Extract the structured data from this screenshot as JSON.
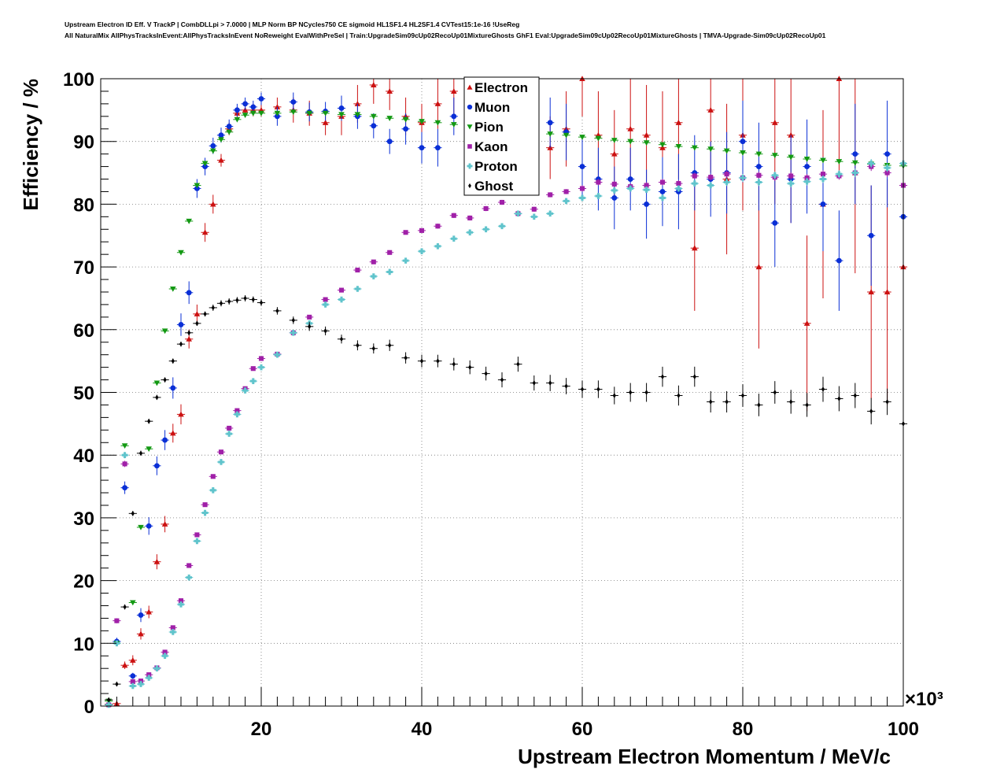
{
  "title_lines": [
    "Upstream Electron ID Eff. V TrackP | CombDLLpi > 7.0000 | MLP Norm BP NCycles750 CE sigmoid HL1SF1.4 HL2SF1.4 CVTest15:1e-16 !UseReg",
    "All NaturalMix AllPhysTracksInEvent:AllPhysTracksInEvent NoReweight EvalWithPreSel | Train:UpgradeSim09cUp02RecoUp01MixtureGhosts GhF1 Eval:UpgradeSim09cUp02RecoUp01MixtureGhosts | TMVA-Upgrade-Sim09cUp02RecoUp01"
  ],
  "colors": {
    "Electron": "#cc1111",
    "Muon": "#0a2fd6",
    "Pion": "#139913",
    "Kaon": "#a020a8",
    "Proton": "#60c4cc",
    "Ghost": "#000000"
  },
  "chart_data": {
    "type": "scatter",
    "xlabel": "Upstream Electron Momentum / MeV/c",
    "ylabel": "Efficiency / %",
    "x_multiplier": "×10³",
    "xlim": [
      0,
      100
    ],
    "ylim": [
      0,
      100
    ],
    "x_ticks": [
      20,
      40,
      60,
      80,
      100
    ],
    "y_ticks": [
      0,
      10,
      20,
      30,
      40,
      50,
      60,
      70,
      80,
      90,
      100
    ],
    "grid": true,
    "legend_position": "top-center",
    "series": [
      {
        "name": "Electron",
        "marker": "triangle-up",
        "x": [
          1,
          2,
          3,
          4,
          5,
          6,
          7,
          8,
          9,
          10,
          11,
          12,
          13,
          14,
          15,
          16,
          17,
          18,
          19,
          20,
          22,
          24,
          26,
          28,
          30,
          32,
          34,
          36,
          38,
          40,
          42,
          44,
          46,
          48,
          50,
          52,
          54,
          56,
          58,
          60,
          62,
          64,
          66,
          68,
          70,
          72,
          74,
          76,
          78,
          80,
          82,
          84,
          86,
          88,
          90,
          92,
          94,
          96,
          98,
          100
        ],
        "y": [
          0.3,
          0.4,
          6.5,
          7.3,
          11.5,
          15,
          23,
          29,
          43.5,
          46.5,
          58.5,
          62.5,
          75.5,
          80,
          87,
          92,
          94.5,
          95,
          95,
          95,
          95.5,
          95,
          94.5,
          93,
          94,
          96,
          99,
          98,
          94,
          93,
          96,
          98,
          95,
          96,
          92,
          88,
          90,
          89,
          92,
          100,
          91,
          88,
          92,
          91,
          89,
          93,
          73,
          95,
          84,
          91,
          70,
          93,
          91,
          61,
          80,
          100,
          85,
          66,
          66,
          70
        ],
        "err": [
          0.3,
          0.3,
          0.6,
          0.8,
          0.9,
          1,
          1.2,
          1.3,
          1.5,
          1.6,
          1.5,
          1.5,
          1.5,
          1.5,
          1,
          1,
          1,
          1,
          1,
          1,
          1.5,
          2,
          2,
          2,
          3,
          3,
          3,
          3,
          3,
          3,
          4,
          4,
          4,
          4,
          5,
          5,
          5,
          5,
          6,
          6,
          7,
          7,
          8,
          8,
          9,
          9,
          10,
          10,
          12,
          12,
          13,
          13,
          14,
          14,
          15,
          15,
          16,
          17,
          18,
          18
        ]
      },
      {
        "name": "Muon",
        "marker": "circle",
        "x": [
          1,
          2,
          3,
          4,
          5,
          6,
          7,
          8,
          9,
          10,
          11,
          12,
          13,
          14,
          15,
          16,
          17,
          18,
          19,
          20,
          22,
          24,
          26,
          28,
          30,
          32,
          34,
          36,
          38,
          40,
          42,
          44,
          46,
          48,
          50,
          52,
          54,
          56,
          58,
          60,
          62,
          64,
          66,
          68,
          70,
          72,
          74,
          76,
          78,
          80,
          82,
          84,
          86,
          88,
          90,
          92,
          94,
          96,
          98,
          100
        ],
        "y": [
          0.2,
          10.3,
          34.8,
          4.8,
          14.5,
          28.7,
          38.3,
          42.4,
          50.7,
          60.8,
          65.9,
          82.5,
          86,
          89.3,
          91,
          92.4,
          95,
          96,
          95.5,
          96.8,
          94,
          96.3,
          94.7,
          94.8,
          95.3,
          94,
          92.5,
          90,
          92,
          89,
          89,
          94,
          90,
          92,
          88,
          90,
          89,
          93,
          91.5,
          86,
          84,
          81,
          84,
          80,
          82,
          82,
          85,
          84,
          85,
          90,
          86,
          77,
          84,
          86,
          80,
          71,
          88,
          75,
          88,
          78
        ],
        "err": [
          0.2,
          0.6,
          1,
          0.5,
          1.1,
          1.4,
          1.5,
          1.6,
          1.7,
          1.8,
          1.8,
          1.5,
          1.4,
          1.3,
          1.2,
          1.1,
          1,
          1,
          1,
          1,
          1.5,
          1.5,
          1.5,
          1.5,
          2,
          2,
          2,
          2,
          2.5,
          2.5,
          3,
          3,
          3,
          3.5,
          3.5,
          4,
          4,
          4,
          4.5,
          4.5,
          5,
          5,
          5,
          5.5,
          5.5,
          6,
          6,
          6,
          6.5,
          6.5,
          7,
          7,
          7,
          7.5,
          7.5,
          8,
          8,
          8,
          8.5,
          8.5
        ]
      },
      {
        "name": "Pion",
        "marker": "triangle-down",
        "x": [
          1,
          2,
          3,
          4,
          5,
          6,
          7,
          8,
          9,
          10,
          11,
          12,
          13,
          14,
          15,
          16,
          17,
          18,
          19,
          20,
          22,
          24,
          26,
          28,
          30,
          32,
          34,
          36,
          38,
          40,
          42,
          44,
          46,
          48,
          50,
          52,
          54,
          56,
          58,
          60,
          62,
          64,
          66,
          68,
          70,
          72,
          74,
          76,
          78,
          80,
          82,
          84,
          86,
          88,
          90,
          92,
          94,
          96,
          98,
          100
        ],
        "y": [
          0.8,
          10,
          41.5,
          16.5,
          28.5,
          41,
          51.5,
          59.8,
          66.5,
          72.3,
          77.3,
          83,
          86.5,
          88.5,
          90.3,
          91.5,
          93.5,
          94.2,
          94.5,
          94.5,
          94.5,
          94.7,
          94.5,
          94.5,
          94.3,
          94.3,
          94,
          93.7,
          93.5,
          93.2,
          93,
          92.7,
          92.5,
          92.2,
          92,
          91.8,
          91.5,
          91.2,
          91,
          90.7,
          90.5,
          90.2,
          90,
          89.8,
          89.5,
          89.2,
          89,
          88.8,
          88.5,
          88.2,
          88,
          87.8,
          87.5,
          87.2,
          87,
          86.8,
          86.6,
          86.4,
          86.2,
          86.1
        ],
        "err": [
          0.1,
          0.2,
          0.3,
          0.3,
          0.3,
          0.3,
          0.3,
          0.3,
          0.3,
          0.3,
          0.3,
          0.3,
          0.3,
          0.3,
          0.3,
          0.3,
          0.3,
          0.3,
          0.3,
          0.3,
          0.3,
          0.3,
          0.3,
          0.3,
          0.3,
          0.3,
          0.3,
          0.3,
          0.3,
          0.3,
          0.3,
          0.3,
          0.3,
          0.3,
          0.3,
          0.3,
          0.3,
          0.3,
          0.3,
          0.3,
          0.3,
          0.3,
          0.3,
          0.3,
          0.3,
          0.3,
          0.3,
          0.3,
          0.3,
          0.3,
          0.4,
          0.4,
          0.4,
          0.4,
          0.4,
          0.4,
          0.4,
          0.4,
          0.4,
          0.4
        ]
      },
      {
        "name": "Kaon",
        "marker": "square",
        "x": [
          1,
          2,
          3,
          4,
          5,
          6,
          7,
          8,
          9,
          10,
          11,
          12,
          13,
          14,
          15,
          16,
          17,
          18,
          19,
          20,
          22,
          24,
          26,
          28,
          30,
          32,
          34,
          36,
          38,
          40,
          42,
          44,
          46,
          48,
          50,
          52,
          54,
          56,
          58,
          60,
          62,
          64,
          66,
          68,
          70,
          72,
          74,
          76,
          78,
          80,
          82,
          84,
          86,
          88,
          90,
          92,
          94,
          96,
          98,
          100
        ],
        "y": [
          0.2,
          13.6,
          38.6,
          3.9,
          4,
          5,
          6.1,
          8.6,
          12.5,
          16.8,
          22.4,
          27.3,
          32.1,
          36.6,
          40.5,
          44.3,
          47.1,
          50.6,
          53.8,
          55.4,
          56.1,
          59.5,
          62,
          64.8,
          66.3,
          69.5,
          70.8,
          72.3,
          75.5,
          75.8,
          76.5,
          78.2,
          77.8,
          79.3,
          80.3,
          78.5,
          79.2,
          81.5,
          82,
          82.5,
          83.5,
          83.2,
          82.8,
          83,
          83.5,
          83.3,
          84.5,
          84.3,
          84.8,
          84.2,
          84.6,
          84.3,
          84.5,
          84.2,
          84.8,
          84.5,
          85,
          86,
          85,
          83
        ],
        "err": [
          0.1,
          0.4,
          0.5,
          0.2,
          0.2,
          0.2,
          0.2,
          0.2,
          0.2,
          0.3,
          0.3,
          0.3,
          0.3,
          0.3,
          0.3,
          0.3,
          0.3,
          0.3,
          0.3,
          0.3,
          0.3,
          0.3,
          0.3,
          0.3,
          0.3,
          0.3,
          0.3,
          0.3,
          0.3,
          0.3,
          0.4,
          0.4,
          0.4,
          0.4,
          0.4,
          0.4,
          0.4,
          0.4,
          0.4,
          0.5,
          0.5,
          0.5,
          0.5,
          0.5,
          0.5,
          0.5,
          0.5,
          0.5,
          0.6,
          0.6,
          0.6,
          0.6,
          0.6,
          0.6,
          0.6,
          0.6,
          0.7,
          0.7,
          0.7,
          0.7
        ]
      },
      {
        "name": "Proton",
        "marker": "cross",
        "x": [
          1,
          2,
          3,
          4,
          5,
          6,
          7,
          8,
          9,
          10,
          11,
          12,
          13,
          14,
          15,
          16,
          17,
          18,
          19,
          20,
          22,
          24,
          26,
          28,
          30,
          32,
          34,
          36,
          38,
          40,
          42,
          44,
          46,
          48,
          50,
          52,
          54,
          56,
          58,
          60,
          62,
          64,
          66,
          68,
          70,
          72,
          74,
          76,
          78,
          80,
          82,
          84,
          86,
          88,
          90,
          92,
          94,
          96,
          98,
          100
        ],
        "y": [
          0.2,
          10,
          40,
          3.2,
          3.5,
          4.5,
          6,
          8,
          11.8,
          16.2,
          20.5,
          26.3,
          30.8,
          34.4,
          38.9,
          43.4,
          46.5,
          50.3,
          51.8,
          54,
          56,
          59.5,
          61,
          64,
          64.8,
          66.5,
          68.5,
          69.2,
          71,
          72.5,
          73.3,
          74.5,
          75.5,
          76,
          76.5,
          78.5,
          78,
          78.5,
          80.5,
          81,
          81.3,
          82.2,
          82.5,
          82.3,
          81,
          82.5,
          83.3,
          83,
          83.5,
          84.2,
          83.5,
          84.6,
          83.3,
          83.6,
          84,
          84.8,
          85,
          86.5,
          85.8,
          86.5
        ],
        "err": [
          0.1,
          0.4,
          0.5,
          0.2,
          0.2,
          0.2,
          0.2,
          0.2,
          0.2,
          0.3,
          0.3,
          0.3,
          0.3,
          0.3,
          0.3,
          0.3,
          0.3,
          0.3,
          0.3,
          0.3,
          0.3,
          0.3,
          0.3,
          0.3,
          0.3,
          0.3,
          0.3,
          0.3,
          0.3,
          0.3,
          0.4,
          0.4,
          0.4,
          0.4,
          0.4,
          0.4,
          0.4,
          0.4,
          0.4,
          0.5,
          0.5,
          0.5,
          0.5,
          0.5,
          0.5,
          0.5,
          0.5,
          0.5,
          0.6,
          0.6,
          0.6,
          0.6,
          0.6,
          0.6,
          0.6,
          0.6,
          0.7,
          0.7,
          0.7,
          0.7
        ]
      },
      {
        "name": "Ghost",
        "marker": "diamond",
        "x": [
          1,
          2,
          3,
          4,
          5,
          6,
          7,
          8,
          9,
          10,
          11,
          12,
          13,
          14,
          15,
          16,
          17,
          18,
          19,
          20,
          22,
          24,
          26,
          28,
          30,
          32,
          34,
          36,
          38,
          40,
          42,
          44,
          46,
          48,
          50,
          52,
          54,
          56,
          58,
          60,
          62,
          64,
          66,
          68,
          70,
          72,
          74,
          76,
          78,
          80,
          82,
          84,
          86,
          88,
          90,
          92,
          94,
          96,
          98,
          100
        ],
        "y": [
          1,
          3.5,
          15.8,
          30.7,
          40.3,
          45.4,
          49.2,
          52,
          55,
          57.7,
          59.5,
          61,
          62.5,
          63.5,
          64.2,
          64.5,
          64.7,
          65,
          64.8,
          64.3,
          63,
          61.5,
          60.5,
          59.8,
          58.5,
          57.5,
          57,
          57.5,
          55.5,
          55,
          55,
          54.5,
          54,
          53,
          52,
          54.5,
          51.5,
          51.5,
          51,
          50.5,
          50.5,
          49.5,
          50,
          50,
          52.5,
          49.5,
          52.5,
          48.5,
          48.5,
          49.5,
          48,
          50,
          48.5,
          48,
          50.5,
          49,
          49.5,
          47,
          48.5,
          45
        ],
        "err": [
          0.2,
          0.3,
          0.4,
          0.4,
          0.4,
          0.4,
          0.4,
          0.4,
          0.4,
          0.4,
          0.4,
          0.4,
          0.4,
          0.5,
          0.5,
          0.5,
          0.5,
          0.5,
          0.5,
          0.5,
          0.6,
          0.6,
          0.7,
          0.7,
          0.7,
          0.8,
          0.8,
          0.9,
          0.9,
          1,
          1,
          1,
          1.1,
          1.1,
          1.2,
          1.2,
          1.2,
          1.3,
          1.3,
          1.4,
          1.4,
          1.4,
          1.5,
          1.5,
          1.6,
          1.6,
          1.6,
          1.7,
          1.7,
          1.8,
          1.8,
          1.8,
          1.9,
          1.9,
          2,
          2,
          2,
          2.1,
          2.1,
          2.2
        ]
      }
    ]
  }
}
